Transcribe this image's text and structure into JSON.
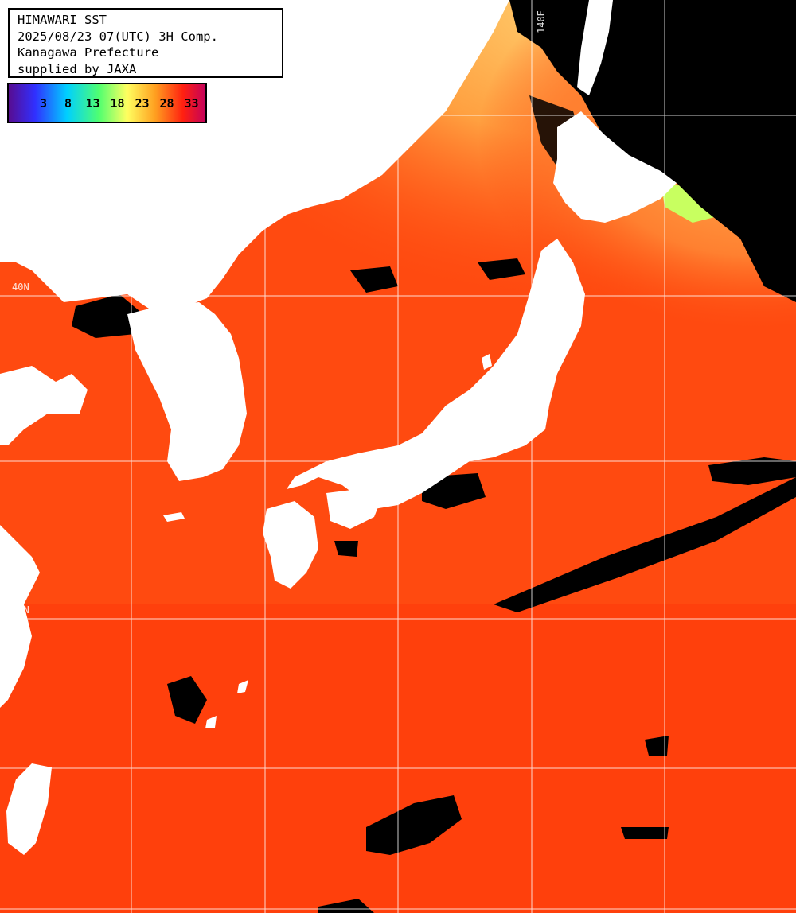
{
  "header": {
    "title": "HIMAWARI SST",
    "datetime": "2025/08/23 07(UTC) 3H Comp.",
    "prefecture": "Kanagawa Prefecture",
    "credit": "supplied by JAXA"
  },
  "legend": {
    "ticks": [
      "3",
      "8",
      "13",
      "18",
      "23",
      "28",
      "33"
    ],
    "gradient_colors": [
      "#6a1b9a",
      "#3f3fff",
      "#00c8ff",
      "#40ff80",
      "#ffff60",
      "#ff9020",
      "#ff2010",
      "#c00060"
    ]
  },
  "grid_labels": {
    "lon_140": "140E",
    "lat_40": "40N",
    "lat_30": "30N"
  },
  "colors": {
    "ocean_warm": "#ff4a10",
    "ocean_warmer": "#ff3608",
    "ocean_cool": "#ff9a3a",
    "ocean_cooler": "#ffcf6a",
    "ocean_coldest": "#c8ff60",
    "land": "#ffffff",
    "cloud": "#000000",
    "grid": "#ffffff"
  }
}
